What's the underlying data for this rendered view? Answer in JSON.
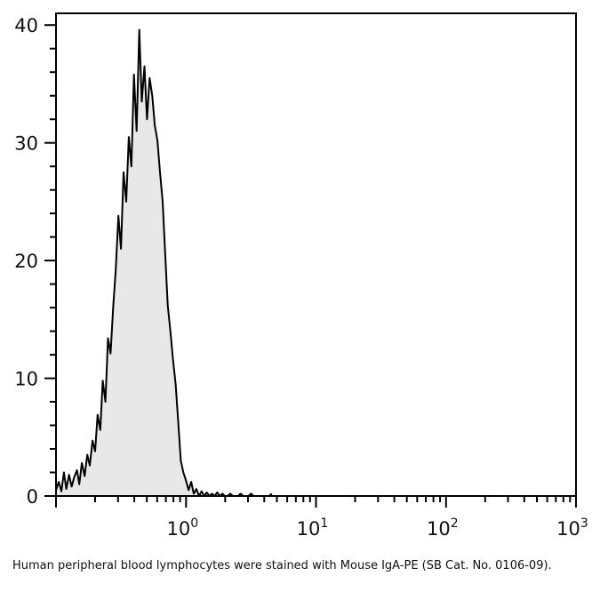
{
  "caption": "Human peripheral blood lymphocytes were stained with Mouse IgA-PE (SB Cat. No. 0106-09).",
  "colors": {
    "axis": "#000000",
    "fill": "#e8e8e8",
    "outline": "#000000"
  },
  "chart_data": {
    "type": "area",
    "title": "",
    "xlabel": "",
    "ylabel": "",
    "xscale": "log",
    "xlim": [
      0.1,
      1000
    ],
    "ylim": [
      0,
      41
    ],
    "grid": false,
    "legend": "none",
    "x_ticks": [
      {
        "value": 1,
        "base": "10",
        "exp": "0"
      },
      {
        "value": 10,
        "base": "10",
        "exp": "1"
      },
      {
        "value": 100,
        "base": "10",
        "exp": "2"
      },
      {
        "value": 1000,
        "base": "10",
        "exp": "3"
      }
    ],
    "y_ticks": [
      0,
      10,
      20,
      30,
      40
    ],
    "series": [
      {
        "x": [
          0.1,
          0.105,
          0.11,
          0.115,
          0.12,
          0.126,
          0.132,
          0.138,
          0.145,
          0.151,
          0.158,
          0.166,
          0.174,
          0.182,
          0.191,
          0.2,
          0.209,
          0.219,
          0.229,
          0.24,
          0.251,
          0.263,
          0.275,
          0.288,
          0.302,
          0.316,
          0.331,
          0.347,
          0.363,
          0.38,
          0.398,
          0.417,
          0.437,
          0.457,
          0.479,
          0.501,
          0.525,
          0.55,
          0.575,
          0.603,
          0.631,
          0.661,
          0.692,
          0.724,
          0.759,
          0.794,
          0.832,
          0.871,
          0.912,
          0.955,
          1.0,
          1.047,
          1.096,
          1.148,
          1.202,
          1.259,
          1.318,
          1.38,
          1.445,
          1.514,
          1.585,
          1.66,
          1.738,
          1.82,
          1.905,
          1.995,
          2.089,
          2.188,
          2.29,
          2.399,
          2.512,
          2.63,
          2.754,
          2.884,
          3.02,
          3.162,
          3.311,
          3.467,
          3.631,
          3.802,
          3.981,
          4.169,
          4.365,
          4.571
        ],
        "y": [
          0.5,
          1.2,
          0.4,
          2.0,
          0.6,
          1.8,
          0.8,
          1.6,
          2.2,
          1.0,
          2.8,
          1.7,
          3.5,
          2.6,
          4.7,
          3.8,
          6.9,
          5.6,
          9.8,
          8.0,
          13.4,
          12.1,
          16.0,
          19.2,
          23.8,
          21.0,
          27.5,
          25.0,
          30.5,
          28.0,
          35.8,
          31.0,
          39.6,
          33.5,
          36.5,
          32.0,
          35.5,
          34.0,
          31.5,
          30.2,
          27.5,
          25.0,
          20.5,
          16.2,
          14.0,
          11.6,
          9.5,
          6.3,
          3.0,
          2.0,
          1.3,
          0.5,
          1.2,
          0.2,
          0.6,
          0.0,
          0.4,
          0.0,
          0.3,
          0.0,
          0.2,
          0.0,
          0.3,
          0.0,
          0.2,
          0.0,
          0.0,
          0.2,
          0.0,
          0.0,
          0.0,
          0.2,
          0.0,
          0.0,
          0.0,
          0.2,
          0.0,
          0.0,
          0.0,
          0.0,
          0.0,
          0.0,
          0.0,
          0.2
        ]
      }
    ]
  }
}
